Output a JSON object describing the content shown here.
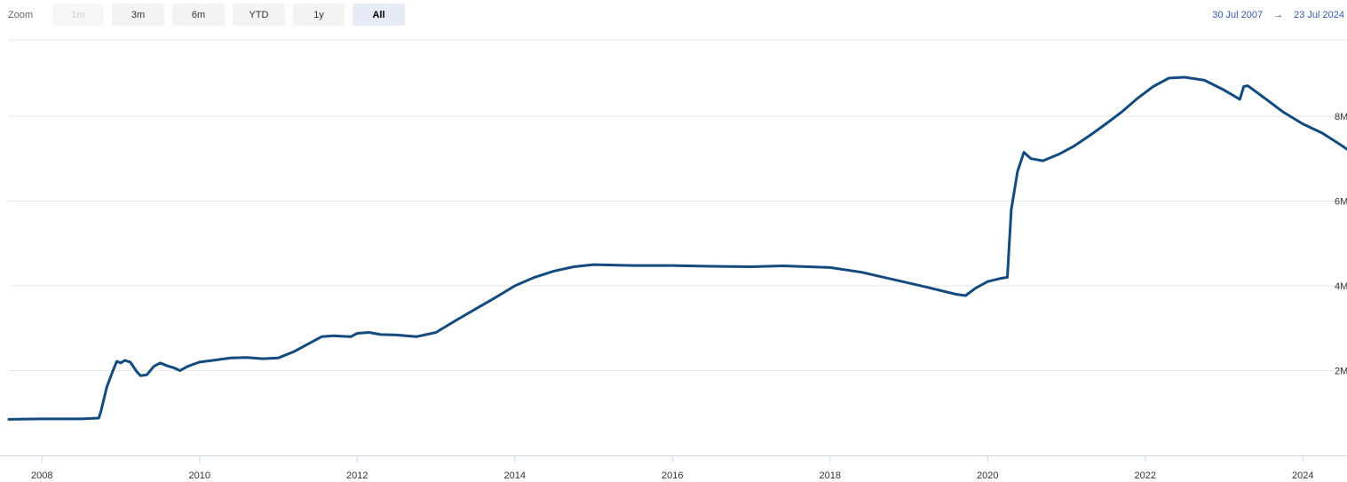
{
  "toolbar": {
    "zoom_label": "Zoom",
    "buttons": [
      {
        "label": "1m",
        "state": "disabled"
      },
      {
        "label": "3m",
        "state": "normal"
      },
      {
        "label": "6m",
        "state": "normal"
      },
      {
        "label": "YTD",
        "state": "normal"
      },
      {
        "label": "1y",
        "state": "normal"
      },
      {
        "label": "All",
        "state": "selected"
      }
    ],
    "range_from": "30 Jul 2007",
    "range_arrow": "→",
    "range_to": "23 Jul 2024"
  },
  "colors": {
    "line": "#134b7e",
    "grid": "#e6e6e6",
    "range_text": "#335cad",
    "selected_button": "#e6ebf5"
  },
  "chart_data": {
    "type": "line",
    "title": "",
    "xlabel": "",
    "ylabel": "",
    "grid": true,
    "xlim": [
      2007.58,
      2024.56
    ],
    "ylim": [
      0,
      9.8
    ],
    "x_ticks": [
      "2008",
      "2010",
      "2012",
      "2014",
      "2016",
      "2018",
      "2020",
      "2022",
      "2024"
    ],
    "y_ticks": [
      "2M",
      "4M",
      "6M",
      "8M"
    ],
    "y_tick_values": [
      2,
      4,
      6,
      8
    ],
    "series": [
      {
        "name": "",
        "unit": "M",
        "points": [
          [
            2007.58,
            0.85
          ],
          [
            2008.0,
            0.86
          ],
          [
            2008.5,
            0.86
          ],
          [
            2008.72,
            0.88
          ],
          [
            2008.75,
            1.05
          ],
          [
            2008.82,
            1.6
          ],
          [
            2008.9,
            2.0
          ],
          [
            2008.95,
            2.22
          ],
          [
            2009.0,
            2.18
          ],
          [
            2009.05,
            2.24
          ],
          [
            2009.12,
            2.2
          ],
          [
            2009.2,
            1.98
          ],
          [
            2009.25,
            1.88
          ],
          [
            2009.33,
            1.9
          ],
          [
            2009.42,
            2.1
          ],
          [
            2009.5,
            2.18
          ],
          [
            2009.58,
            2.12
          ],
          [
            2009.68,
            2.06
          ],
          [
            2009.75,
            2.0
          ],
          [
            2009.85,
            2.1
          ],
          [
            2010.0,
            2.2
          ],
          [
            2010.2,
            2.25
          ],
          [
            2010.4,
            2.3
          ],
          [
            2010.6,
            2.31
          ],
          [
            2010.8,
            2.28
          ],
          [
            2011.0,
            2.3
          ],
          [
            2011.2,
            2.45
          ],
          [
            2011.4,
            2.65
          ],
          [
            2011.55,
            2.8
          ],
          [
            2011.7,
            2.82
          ],
          [
            2011.92,
            2.8
          ],
          [
            2012.0,
            2.88
          ],
          [
            2012.15,
            2.9
          ],
          [
            2012.3,
            2.85
          ],
          [
            2012.5,
            2.84
          ],
          [
            2012.75,
            2.8
          ],
          [
            2013.0,
            2.9
          ],
          [
            2013.25,
            3.18
          ],
          [
            2013.5,
            3.45
          ],
          [
            2013.75,
            3.72
          ],
          [
            2014.0,
            4.0
          ],
          [
            2014.25,
            4.2
          ],
          [
            2014.5,
            4.35
          ],
          [
            2014.75,
            4.45
          ],
          [
            2015.0,
            4.5
          ],
          [
            2015.5,
            4.48
          ],
          [
            2016.0,
            4.48
          ],
          [
            2016.5,
            4.46
          ],
          [
            2017.0,
            4.45
          ],
          [
            2017.4,
            4.47
          ],
          [
            2018.0,
            4.43
          ],
          [
            2018.4,
            4.32
          ],
          [
            2018.8,
            4.15
          ],
          [
            2019.2,
            3.98
          ],
          [
            2019.6,
            3.8
          ],
          [
            2019.72,
            3.77
          ],
          [
            2019.85,
            3.95
          ],
          [
            2020.0,
            4.1
          ],
          [
            2020.15,
            4.17
          ],
          [
            2020.25,
            4.2
          ],
          [
            2020.3,
            5.8
          ],
          [
            2020.38,
            6.7
          ],
          [
            2020.46,
            7.15
          ],
          [
            2020.55,
            7.0
          ],
          [
            2020.7,
            6.95
          ],
          [
            2020.9,
            7.1
          ],
          [
            2021.1,
            7.3
          ],
          [
            2021.3,
            7.55
          ],
          [
            2021.5,
            7.82
          ],
          [
            2021.7,
            8.1
          ],
          [
            2021.9,
            8.42
          ],
          [
            2022.1,
            8.7
          ],
          [
            2022.3,
            8.9
          ],
          [
            2022.5,
            8.92
          ],
          [
            2022.75,
            8.85
          ],
          [
            2023.0,
            8.62
          ],
          [
            2023.2,
            8.4
          ],
          [
            2023.25,
            8.7
          ],
          [
            2023.3,
            8.72
          ],
          [
            2023.5,
            8.45
          ],
          [
            2023.75,
            8.1
          ],
          [
            2024.0,
            7.82
          ],
          [
            2024.25,
            7.6
          ],
          [
            2024.5,
            7.3
          ],
          [
            2024.56,
            7.22
          ]
        ]
      }
    ]
  }
}
